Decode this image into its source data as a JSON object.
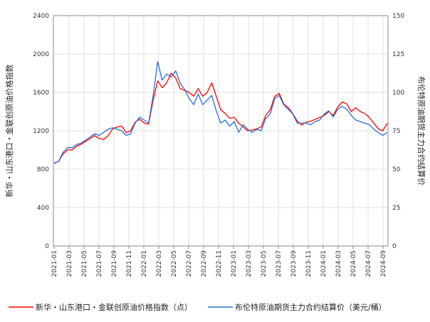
{
  "chart_data": {
    "type": "line",
    "title": "",
    "ylabel_left": "新华・山东港口・金联创原油价格指数",
    "ylabel_right": "布伦特原油期货主力合约结算价",
    "ylim_left": [
      0,
      2400
    ],
    "ylim_right": [
      0,
      150
    ],
    "yticks_left": [
      "0",
      "400",
      "800",
      "1200",
      "1600",
      "2000",
      "2400"
    ],
    "yticks_right": [
      "0",
      "25",
      "50",
      "75",
      "100",
      "125",
      "150"
    ],
    "x_ticks": [
      "2021-01",
      "2021-03",
      "2021-05",
      "2021-07",
      "2021-09",
      "2021-11",
      "2022-01",
      "2022-03",
      "2022-05",
      "2022-07",
      "2022-09",
      "2022-11",
      "2023-01",
      "2023-03",
      "2023-05",
      "2023-07",
      "2023-09",
      "2023-11",
      "2024-01",
      "2024-03",
      "2024-05",
      "2024-07",
      "2024-09"
    ],
    "grid": true,
    "legend_position": "bottom",
    "series": [
      {
        "name": "新华・山东港口・金联创原油价格指数（点）",
        "axis": "left",
        "color": "#ff0000",
        "values": [
          860,
          880,
          960,
          1000,
          1000,
          1040,
          1060,
          1090,
          1120,
          1150,
          1120,
          1110,
          1150,
          1220,
          1240,
          1250,
          1180,
          1200,
          1290,
          1320,
          1280,
          1270,
          1520,
          1720,
          1650,
          1700,
          1800,
          1750,
          1640,
          1620,
          1600,
          1560,
          1640,
          1560,
          1600,
          1700,
          1560,
          1420,
          1380,
          1330,
          1340,
          1280,
          1240,
          1200,
          1210,
          1220,
          1240,
          1360,
          1420,
          1560,
          1590,
          1480,
          1440,
          1380,
          1300,
          1260,
          1290,
          1300,
          1320,
          1340,
          1360,
          1400,
          1360,
          1450,
          1500,
          1480,
          1400,
          1440,
          1400,
          1380,
          1340,
          1280,
          1220,
          1200,
          1280
        ]
      },
      {
        "name": "布伦特原油期货主力合约结算价（美元/桶）",
        "axis": "right",
        "color": "#2b6fd4",
        "values": [
          54,
          55,
          61,
          64,
          64,
          66,
          67,
          69,
          71,
          73,
          72,
          74,
          76,
          77,
          76,
          75,
          72,
          73,
          80,
          84,
          82,
          80,
          98,
          120,
          108,
          112,
          110,
          114,
          106,
          102,
          96,
          92,
          99,
          92,
          95,
          98,
          88,
          80,
          82,
          78,
          81,
          74,
          79,
          76,
          74,
          76,
          75,
          83,
          86,
          96,
          98,
          92,
          89,
          86,
          80,
          80,
          80,
          79,
          81,
          82,
          86,
          88,
          84,
          89,
          91,
          89,
          85,
          82,
          81,
          80,
          79,
          76,
          74,
          72,
          74
        ]
      }
    ]
  }
}
